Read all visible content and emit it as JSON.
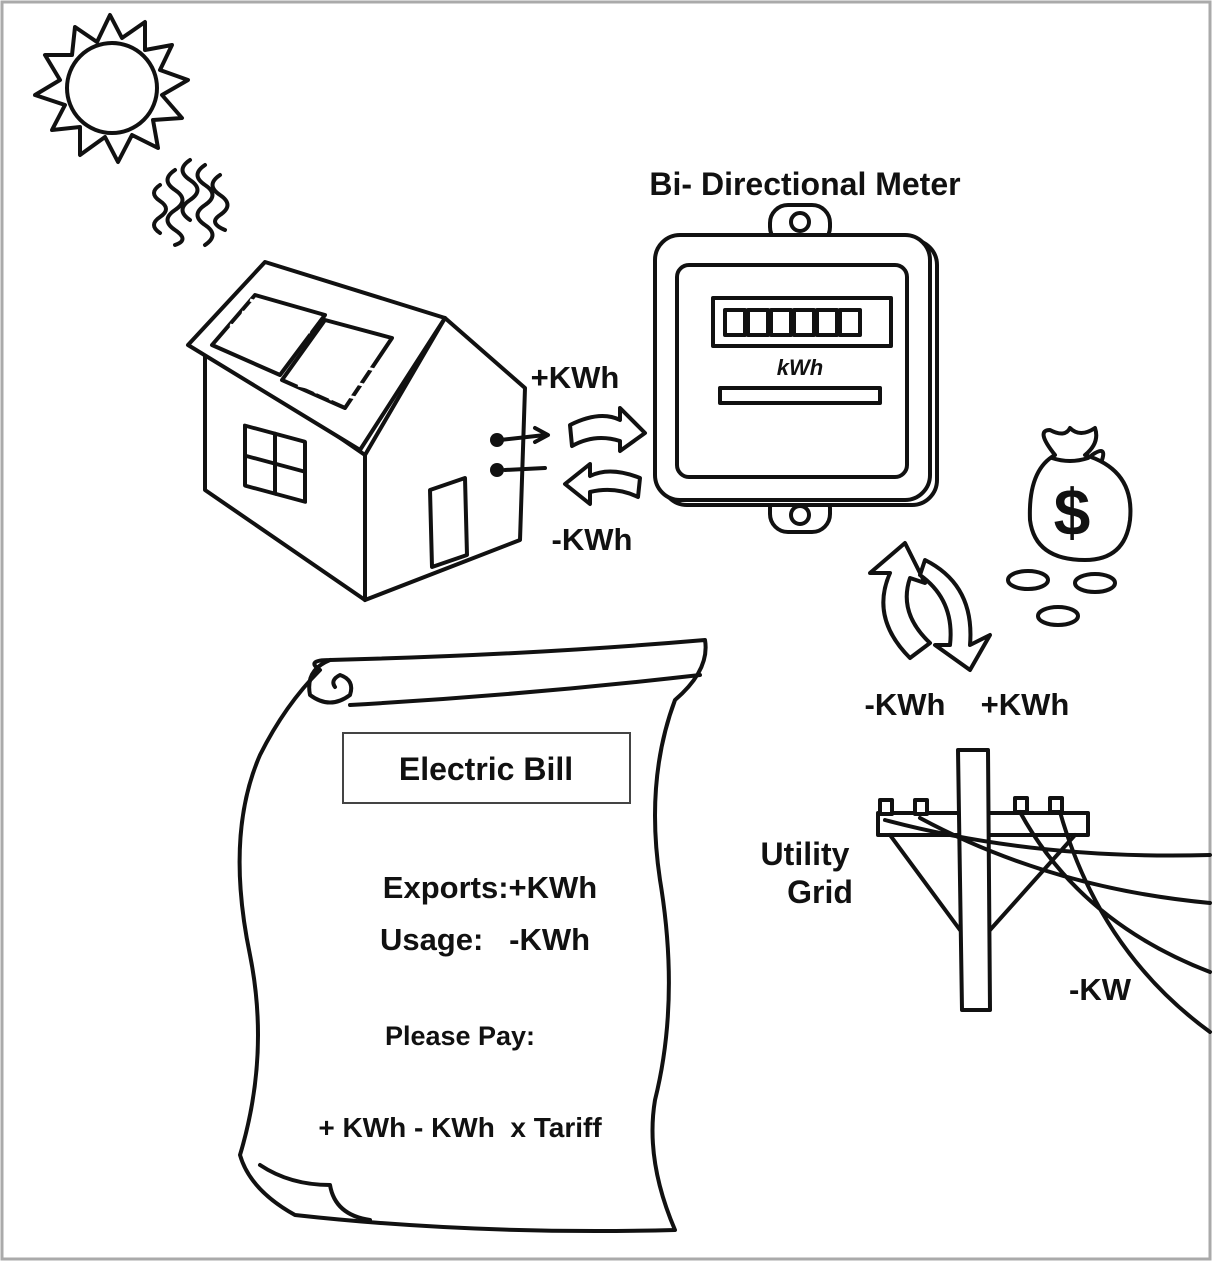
{
  "meter": {
    "title": "Bi- Directional Meter",
    "display_unit": "kWh"
  },
  "house": {
    "export_label": "+KWh",
    "import_label": "-KWh"
  },
  "grid": {
    "import_label": "-KWh",
    "export_label": "+KWh",
    "name_line1": "Utility",
    "name_line2": "Grid",
    "line_label": "-KW"
  },
  "money": {
    "symbol": "$"
  },
  "bill": {
    "title": "Electric Bill",
    "lines": [
      "Exports:+KWh",
      "Usage:   -KWh",
      "Please Pay:",
      "+ KWh - KWh  x Tariff"
    ]
  }
}
